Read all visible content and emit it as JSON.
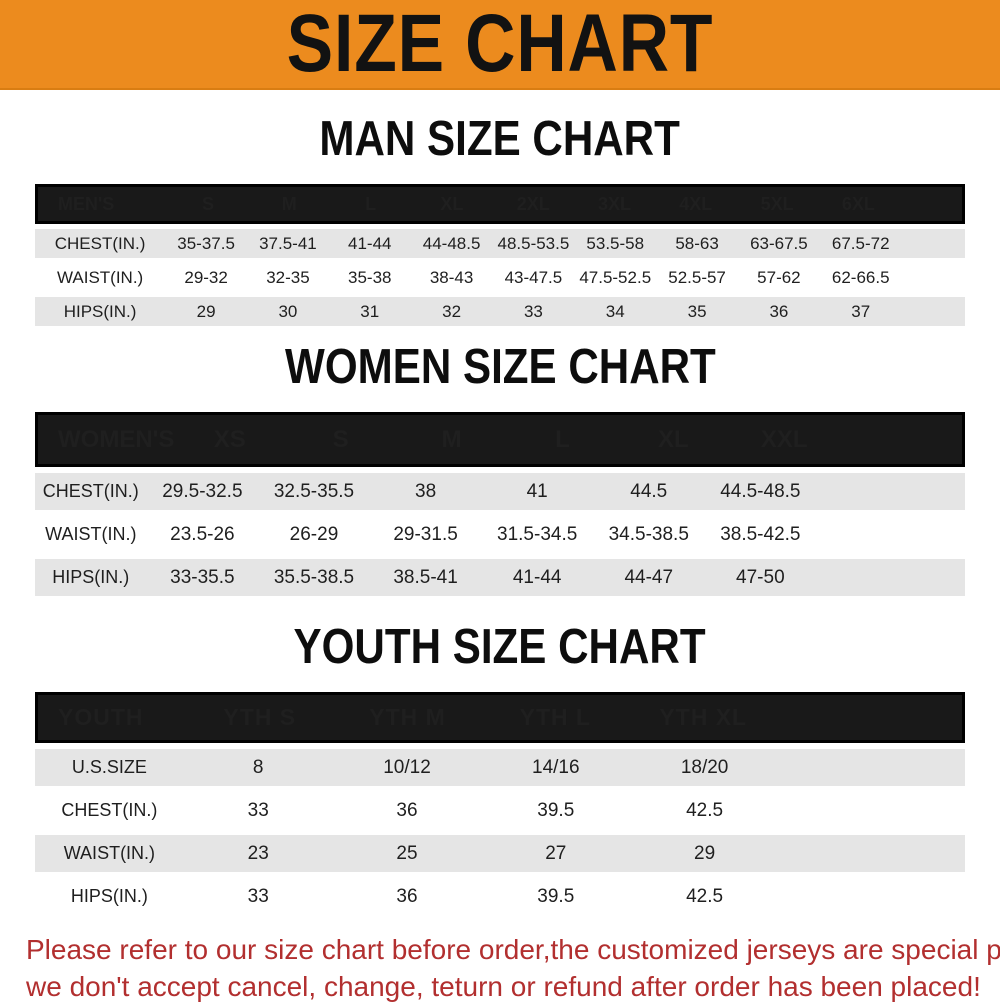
{
  "banner": {
    "title": "SIZE CHART",
    "background_color": "#EC8B1E",
    "text_color": "#121212"
  },
  "colors": {
    "header_bar": "#191919",
    "header_bar_text": "#ffffff",
    "row_gray": "#e5e5e5",
    "row_white": "#ffffff",
    "disclaimer_red": "#B22F2F"
  },
  "sections": [
    {
      "title": "MAN SIZE CHART",
      "table": {
        "header_label": "MEN'S",
        "columns": [
          "S",
          "M",
          "L",
          "XL",
          "2XL",
          "3XL",
          "4XL",
          "5XL",
          "6XL"
        ],
        "rows": [
          {
            "label": "CHEST(IN.)",
            "values": [
              "35-37.5",
              "37.5-41",
              "41-44",
              "44-48.5",
              "48.5-53.5",
              "53.5-58",
              "58-63",
              "63-67.5",
              "67.5-72"
            ]
          },
          {
            "label": "WAIST(IN.)",
            "values": [
              "29-32",
              "32-35",
              "35-38",
              "38-43",
              "43-47.5",
              "47.5-52.5",
              "52.5-57",
              "57-62",
              "62-66.5"
            ]
          },
          {
            "label": "HIPS(IN.)",
            "values": [
              "29",
              "30",
              "31",
              "32",
              "33",
              "34",
              "35",
              "36",
              "37"
            ]
          }
        ]
      }
    },
    {
      "title": "WOMEN SIZE CHART",
      "table": {
        "header_label": "WOMEN'S",
        "columns": [
          "XS",
          "S",
          "M",
          "L",
          "XL",
          "XXL"
        ],
        "rows": [
          {
            "label": "CHEST(IN.)",
            "values": [
              "29.5-32.5",
              "32.5-35.5",
              "38",
              "41",
              "44.5",
              "44.5-48.5"
            ]
          },
          {
            "label": "WAIST(IN.)",
            "values": [
              "23.5-26",
              "26-29",
              "29-31.5",
              "31.5-34.5",
              "34.5-38.5",
              "38.5-42.5"
            ]
          },
          {
            "label": "HIPS(IN.)",
            "values": [
              "33-35.5",
              "35.5-38.5",
              "38.5-41",
              "41-44",
              "44-47",
              "47-50"
            ]
          }
        ]
      }
    },
    {
      "title": "YOUTH SIZE CHART",
      "table": {
        "header_label": "YOUTH",
        "columns": [
          "YTH S",
          "YTH M",
          "YTH L",
          "YTH XL"
        ],
        "rows": [
          {
            "label": "U.S.SIZE",
            "values": [
              "8",
              "10/12",
              "14/16",
              "18/20"
            ]
          },
          {
            "label": "CHEST(IN.)",
            "values": [
              "33",
              "36",
              "39.5",
              "42.5"
            ]
          },
          {
            "label": "WAIST(IN.)",
            "values": [
              "23",
              "25",
              "27",
              "29"
            ]
          },
          {
            "label": "HIPS(IN.)",
            "values": [
              "33",
              "36",
              "39.5",
              "42.5"
            ]
          }
        ]
      }
    }
  ],
  "disclaimer": {
    "line1": "Please refer to our size chart before order,the customized jerseys are special products,",
    "line2": "we don't accept cancel, change, teturn or refund after order has been placed!"
  }
}
